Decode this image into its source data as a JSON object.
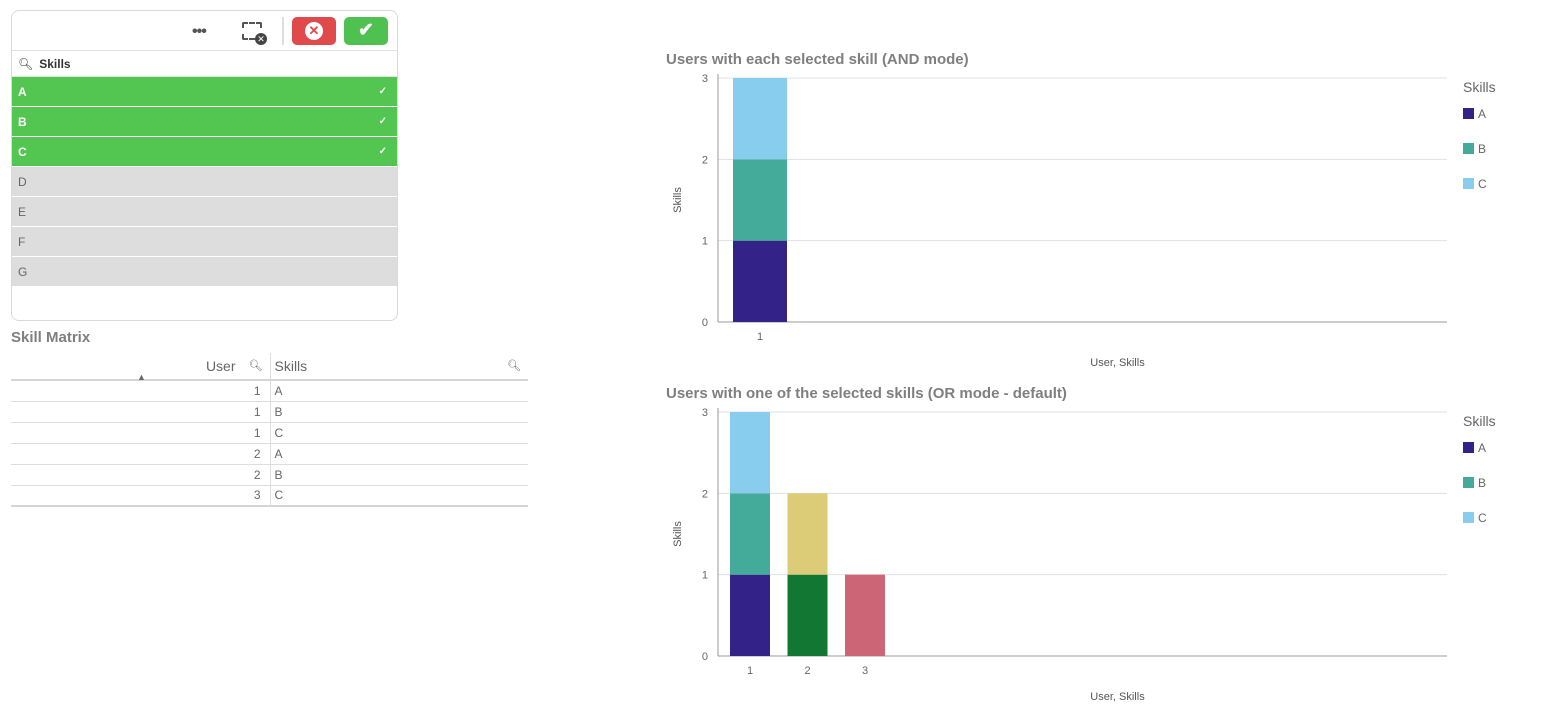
{
  "listbox": {
    "field": "Skills",
    "items": [
      {
        "label": "A",
        "state": "selected"
      },
      {
        "label": "B",
        "state": "selected"
      },
      {
        "label": "C",
        "state": "selected"
      },
      {
        "label": "D",
        "state": "alternative"
      },
      {
        "label": "E",
        "state": "alternative"
      },
      {
        "label": "F",
        "state": "alternative"
      },
      {
        "label": "G",
        "state": "alternative"
      }
    ],
    "more": "•••",
    "check": "✓",
    "cancel": "✕",
    "confirm": "✔"
  },
  "table": {
    "title": "Skill Matrix",
    "headers": [
      "User",
      "Skills"
    ],
    "rows": [
      [
        "1",
        "A"
      ],
      [
        "1",
        "B"
      ],
      [
        "1",
        "C"
      ],
      [
        "2",
        "A"
      ],
      [
        "2",
        "B"
      ],
      [
        "3",
        "C"
      ]
    ]
  },
  "chart_data": [
    {
      "type": "bar",
      "stacked": true,
      "title": "Users with each selected skill (AND mode)",
      "xlabel": "User, Skills",
      "ylabel": "Skills",
      "ylim": [
        0,
        3
      ],
      "yticks": [
        "0",
        "1",
        "2",
        "3"
      ],
      "categories": [
        "1"
      ],
      "bars": [
        [
          {
            "name": "A",
            "value": 1,
            "color": "#332288"
          },
          {
            "name": "B",
            "value": 1,
            "color": "#44aa99"
          },
          {
            "name": "C",
            "value": 1,
            "color": "#88ccee"
          }
        ]
      ],
      "legend": {
        "title": "Skills",
        "position": "right",
        "items": [
          {
            "label": "A",
            "color": "#332288"
          },
          {
            "label": "B",
            "color": "#44aa99"
          },
          {
            "label": "C",
            "color": "#88ccee"
          }
        ]
      }
    },
    {
      "type": "bar",
      "stacked": true,
      "title": "Users with one of the selected skills (OR mode - default)",
      "xlabel": "User, Skills",
      "ylabel": "Skills",
      "ylim": [
        0,
        3
      ],
      "yticks": [
        "0",
        "1",
        "2",
        "3"
      ],
      "categories": [
        "1",
        "2",
        "3"
      ],
      "bars": [
        [
          {
            "name": "A",
            "value": 1,
            "color": "#332288"
          },
          {
            "name": "B",
            "value": 1,
            "color": "#44aa99"
          },
          {
            "name": "C",
            "value": 1,
            "color": "#88ccee"
          }
        ],
        [
          {
            "name": "A",
            "value": 1,
            "color": "#117733"
          },
          {
            "name": "B",
            "value": 1,
            "color": "#ddcc77"
          }
        ],
        [
          {
            "name": "C",
            "value": 1,
            "color": "#cc6677"
          }
        ]
      ],
      "legend": {
        "title": "Skills",
        "position": "right",
        "items": [
          {
            "label": "A",
            "color": "#332288"
          },
          {
            "label": "B",
            "color": "#44aa99"
          },
          {
            "label": "C",
            "color": "#88ccee"
          }
        ]
      }
    }
  ]
}
